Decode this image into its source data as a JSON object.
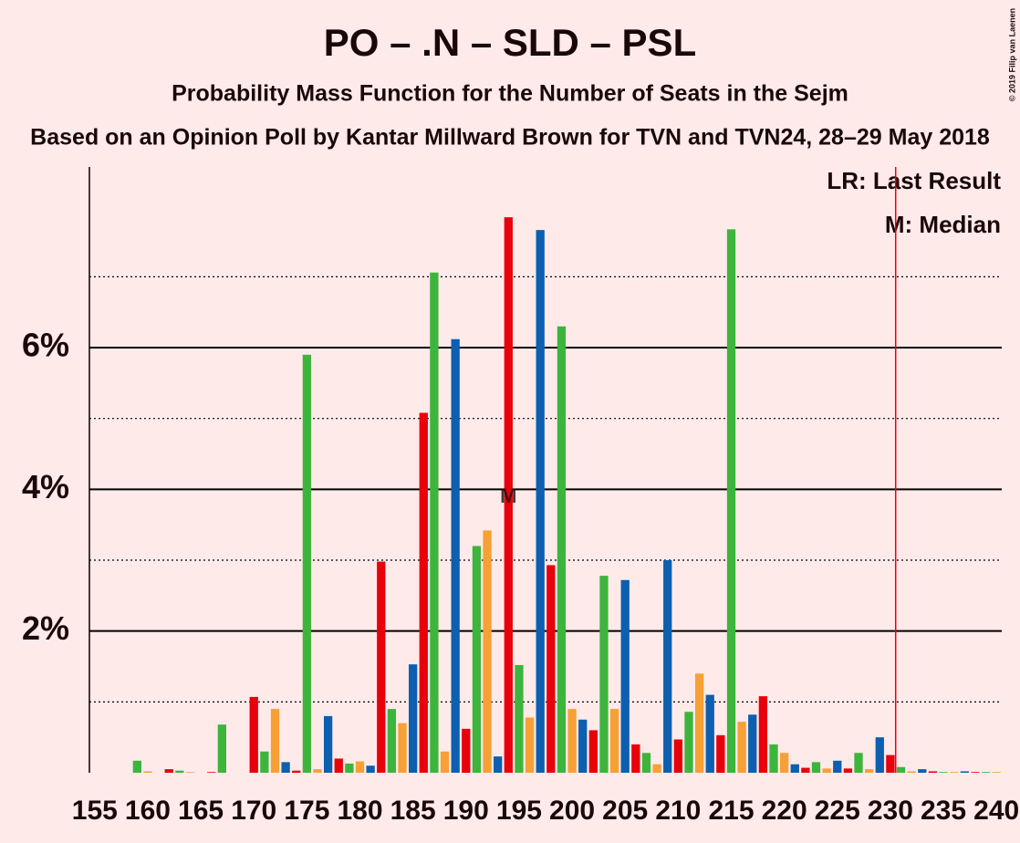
{
  "chart_data": {
    "type": "bar",
    "title": "PO – .N – SLD – PSL",
    "subtitle": "Probability Mass Function for the Number of Seats in the Sejm",
    "caption": "Based on an Opinion Poll by Kantar Millward Brown for TVN and TVN24, 28–29 May 2018",
    "copyright": "© 2019 Filip van Laenen",
    "legend": [
      "LR: Last Result",
      "M: Median"
    ],
    "median": 194,
    "median_marker": "M",
    "last_result": 231,
    "categories": [
      155,
      156,
      157,
      158,
      159,
      160,
      161,
      162,
      163,
      164,
      165,
      166,
      167,
      168,
      169,
      170,
      171,
      172,
      173,
      174,
      175,
      176,
      177,
      178,
      179,
      180,
      181,
      182,
      183,
      184,
      185,
      186,
      187,
      188,
      189,
      190,
      191,
      192,
      193,
      194,
      195,
      196,
      197,
      198,
      199,
      200,
      201,
      202,
      203,
      204,
      205,
      206,
      207,
      208,
      209,
      210,
      211,
      212,
      213,
      214,
      215,
      216,
      217,
      218,
      219,
      220,
      221,
      222,
      223,
      224,
      225,
      226,
      227,
      228,
      229,
      230,
      231,
      232,
      233,
      234,
      235,
      236,
      237,
      238,
      239,
      240
    ],
    "values": [
      0,
      0,
      0,
      0,
      0.17,
      0.02,
      0,
      0.05,
      0.03,
      0.01,
      0,
      0.01,
      0.68,
      0,
      0,
      1.07,
      0.3,
      0.9,
      0.15,
      0.03,
      5.9,
      0.05,
      0.8,
      0.2,
      0.13,
      0.16,
      0.1,
      2.98,
      0.9,
      0.7,
      1.53,
      5.08,
      7.06,
      0.3,
      6.12,
      0.62,
      3.2,
      3.42,
      0.23,
      7.84,
      1.52,
      0.78,
      7.66,
      2.93,
      6.3,
      0.9,
      0.75,
      0.6,
      2.78,
      0.9,
      2.72,
      0.4,
      0.28,
      0.12,
      3.0,
      0.47,
      0.86,
      1.4,
      1.1,
      0.53,
      7.67,
      0.72,
      0.82,
      1.08,
      0.4,
      0.28,
      0.12,
      0.07,
      0.15,
      0.06,
      0.17,
      0.06,
      0.28,
      0.05,
      0.5,
      0.25,
      0.08,
      0.02,
      0.05,
      0.02,
      0.01,
      0.01,
      0.02,
      0.01,
      0.01,
      0.01
    ],
    "color_cycle": [
      "#3db53d",
      "#f7a035",
      "#0d5fb0",
      "#e8000b"
    ],
    "last_result_color": "#e8000b",
    "xlim": [
      154.5,
      240.5
    ],
    "xticks": [
      155,
      160,
      165,
      170,
      175,
      180,
      185,
      190,
      195,
      200,
      205,
      210,
      215,
      220,
      225,
      230,
      235,
      240
    ],
    "ylim": [
      0,
      8.55
    ],
    "yticks": [
      {
        "value": 2,
        "label": "2%"
      },
      {
        "value": 4,
        "label": "4%"
      },
      {
        "value": 6,
        "label": "6%"
      }
    ],
    "minor_yticks": [
      1,
      3,
      5,
      7
    ]
  }
}
